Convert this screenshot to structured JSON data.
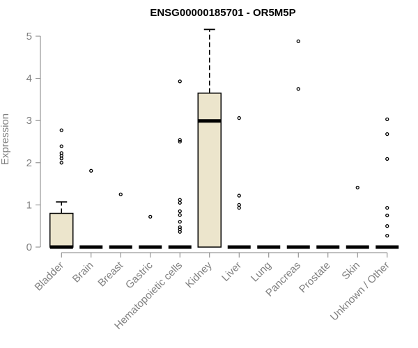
{
  "chart_data": {
    "type": "boxplot",
    "title": "ENSG00000185701 - OR5M5P",
    "xlabel": "",
    "ylabel": "Expression",
    "ylim": [
      0,
      5.15
    ],
    "yticks": [
      0,
      1,
      2,
      3,
      4,
      5
    ],
    "grid": false,
    "colors": {
      "box_fill": "#ece5cc",
      "box_stroke": "#000000",
      "axis": "#808080",
      "title": "#000000"
    },
    "categories": [
      "Bladder",
      "Brain",
      "Breast",
      "Gastric",
      "Hematopoietic cells",
      "Kidney",
      "Liver",
      "Lung",
      "Pancreas",
      "Prostate",
      "Skin",
      "Unknown / Other"
    ],
    "boxes": [
      {
        "category": "Bladder",
        "min": 0,
        "q1": 0,
        "median": 0,
        "q3": 0.8,
        "max": 1.07,
        "outliers": [
          2.0,
          2.1,
          2.17,
          2.23,
          2.39,
          2.77
        ]
      },
      {
        "category": "Brain",
        "min": 0,
        "q1": 0,
        "median": 0,
        "q3": 0,
        "max": 0,
        "outliers": [
          1.81
        ]
      },
      {
        "category": "Breast",
        "min": 0,
        "q1": 0,
        "median": 0,
        "q3": 0,
        "max": 0,
        "outliers": [
          1.25
        ]
      },
      {
        "category": "Gastric",
        "min": 0,
        "q1": 0,
        "median": 0,
        "q3": 0,
        "max": 0,
        "outliers": [
          0.72
        ]
      },
      {
        "category": "Hematopoietic cells",
        "min": 0,
        "q1": 0,
        "median": 0,
        "q3": 0,
        "max": 0,
        "outliers": [
          0.36,
          0.42,
          0.47,
          0.6,
          0.76,
          0.85,
          1.05,
          1.12,
          2.5,
          2.54,
          3.93
        ]
      },
      {
        "category": "Kidney",
        "min": 0,
        "q1": 0,
        "median": 2.99,
        "q3": 3.65,
        "max": 5.16,
        "outliers": []
      },
      {
        "category": "Liver",
        "min": 0,
        "q1": 0,
        "median": 0,
        "q3": 0,
        "max": 0,
        "outliers": [
          0.93,
          1.0,
          1.22,
          3.06
        ]
      },
      {
        "category": "Lung",
        "min": 0,
        "q1": 0,
        "median": 0,
        "q3": 0,
        "max": 0,
        "outliers": []
      },
      {
        "category": "Pancreas",
        "min": 0,
        "q1": 0,
        "median": 0,
        "q3": 0,
        "max": 0,
        "outliers": [
          3.75,
          4.88
        ]
      },
      {
        "category": "Prostate",
        "min": 0,
        "q1": 0,
        "median": 0,
        "q3": 0,
        "max": 0,
        "outliers": []
      },
      {
        "category": "Skin",
        "min": 0,
        "q1": 0,
        "median": 0,
        "q3": 0,
        "max": 0,
        "outliers": [
          1.41
        ]
      },
      {
        "category": "Unknown / Other",
        "min": 0,
        "q1": 0,
        "median": 0,
        "q3": 0,
        "max": 0,
        "outliers": [
          0.27,
          0.5,
          0.75,
          0.93,
          2.09,
          2.68,
          3.03
        ]
      }
    ]
  }
}
